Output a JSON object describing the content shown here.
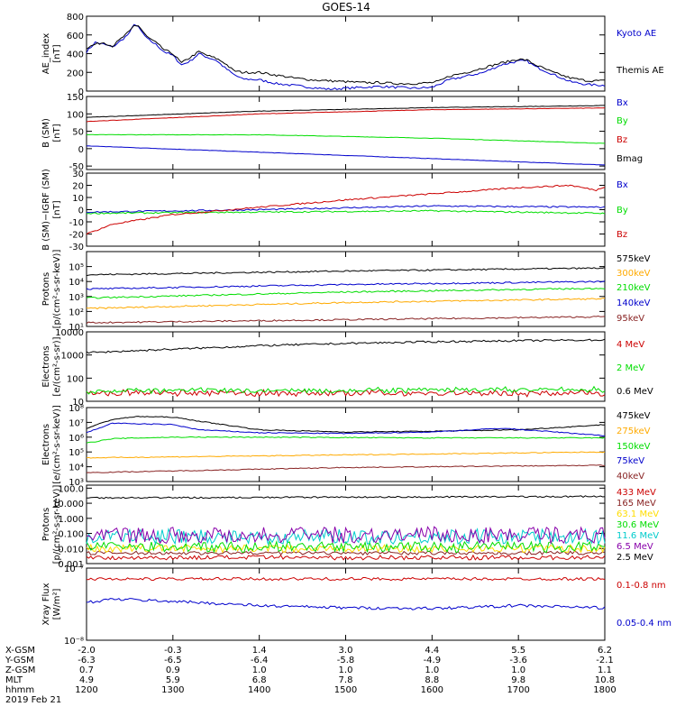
{
  "title": "GOES-14",
  "colors": {
    "black": "#000000",
    "blue": "#0000cc",
    "green": "#00dd00",
    "red": "#cc0000",
    "orange": "#ffaa00",
    "yellow": "#ffdd00",
    "cyan": "#00cccc",
    "purple": "#8800aa",
    "brown": "#882222"
  },
  "chart_data": [
    {
      "type": "line",
      "id": "ae",
      "ylabel": [
        "AE_index",
        "[nT]"
      ],
      "scale": "linear",
      "ylim": [
        0,
        800
      ],
      "ticks": [
        "0",
        "200",
        "400",
        "600",
        "800"
      ],
      "series": [
        {
          "name": "Kyoto AE",
          "color": "blue",
          "x": [
            1200,
            1210,
            1220,
            1230,
            1240,
            1250,
            1255,
            1260,
            1270,
            1280,
            1290,
            1300,
            1310,
            1320,
            1330,
            1340,
            1350,
            1360,
            1370,
            1380,
            1400,
            1420,
            1440,
            1460,
            1480,
            1500,
            1520,
            1540,
            1560,
            1580,
            1600,
            1610,
            1620,
            1640,
            1660,
            1680,
            1700,
            1710,
            1720,
            1740,
            1760,
            1780,
            1800
          ],
          "y": [
            420,
            520,
            500,
            470,
            540,
            620,
            720,
            680,
            560,
            500,
            420,
            380,
            280,
            320,
            400,
            360,
            330,
            250,
            180,
            130,
            120,
            80,
            60,
            40,
            20,
            30,
            40,
            50,
            40,
            30,
            40,
            80,
            120,
            160,
            200,
            280,
            320,
            320,
            260,
            180,
            100,
            70,
            60
          ]
        },
        {
          "name": "Themis AE",
          "color": "black",
          "x": [
            1200,
            1210,
            1220,
            1230,
            1240,
            1250,
            1255,
            1260,
            1270,
            1280,
            1290,
            1300,
            1310,
            1320,
            1330,
            1340,
            1350,
            1360,
            1370,
            1380,
            1400,
            1420,
            1440,
            1460,
            1480,
            1500,
            1520,
            1540,
            1560,
            1580,
            1600,
            1610,
            1620,
            1640,
            1660,
            1680,
            1700,
            1710,
            1720,
            1740,
            1760,
            1780,
            1800
          ],
          "y": [
            460,
            500,
            520,
            480,
            560,
            640,
            700,
            700,
            580,
            520,
            440,
            400,
            300,
            360,
            420,
            380,
            350,
            300,
            220,
            200,
            200,
            170,
            140,
            120,
            110,
            100,
            90,
            90,
            80,
            80,
            90,
            110,
            160,
            200,
            250,
            300,
            340,
            330,
            280,
            200,
            140,
            110,
            110
          ]
        }
      ],
      "legend": [
        "Kyoto AE",
        "Themis AE"
      ]
    },
    {
      "type": "line",
      "id": "bsm",
      "ylabel": [
        "B (SM)",
        "[nT]"
      ],
      "scale": "linear",
      "ylim": [
        -60,
        150
      ],
      "ticks": [
        "-50",
        "0",
        "50",
        "100",
        "150"
      ],
      "series": [
        {
          "name": "Bx",
          "color": "blue",
          "x": [
            1200,
            1800
          ],
          "y": [
            8,
            -47
          ]
        },
        {
          "name": "By",
          "color": "green",
          "x": [
            1200,
            1400,
            1600,
            1800
          ],
          "y": [
            40,
            40,
            30,
            15
          ]
        },
        {
          "name": "Bz",
          "color": "red",
          "x": [
            1200,
            1400,
            1600,
            1800
          ],
          "y": [
            78,
            100,
            112,
            117
          ]
        },
        {
          "name": "Bmag",
          "color": "black",
          "x": [
            1200,
            1400,
            1600,
            1800
          ],
          "y": [
            90,
            108,
            118,
            124
          ]
        }
      ],
      "legend": [
        "Bx",
        "By",
        "Bz",
        "Bmag"
      ]
    },
    {
      "type": "line",
      "id": "bigrf",
      "ylabel": [
        "B (SM)−IGRF (SM)",
        "[nT]"
      ],
      "scale": "linear",
      "ylim": [
        -30,
        30
      ],
      "ticks": [
        "-30",
        "-20",
        "-10",
        "0",
        "10",
        "20",
        "30"
      ],
      "series": [
        {
          "name": "Bx",
          "color": "blue",
          "x": [
            1200,
            1400,
            1600,
            1800
          ],
          "y": [
            -2,
            0,
            3,
            2
          ]
        },
        {
          "name": "By",
          "color": "green",
          "x": [
            1200,
            1400,
            1600,
            1800
          ],
          "y": [
            -3,
            -2,
            -1,
            -3
          ]
        },
        {
          "name": "Bz",
          "color": "red",
          "x": [
            1200,
            1230,
            1300,
            1400,
            1500,
            1600,
            1700,
            1760,
            1790,
            1800
          ],
          "y": [
            -20,
            -12,
            -4,
            2,
            8,
            13,
            18,
            20,
            16,
            19
          ]
        }
      ],
      "legend": [
        "Bx",
        "By",
        "Bz"
      ]
    },
    {
      "type": "line",
      "id": "protons1",
      "ylabel": [
        "Protons",
        "[p/(cm²-s-sr-keV)]"
      ],
      "scale": "log",
      "ylim": [
        1,
        6
      ],
      "ticks": [
        "10¹",
        "10²",
        "10³",
        "10⁴",
        "10⁵"
      ],
      "series": [
        {
          "name": "575keV",
          "color": "black",
          "x": [
            1200,
            1500,
            1800
          ],
          "y": [
            4.45,
            4.7,
            4.9
          ]
        },
        {
          "name": "300keV",
          "color": "orange",
          "x": [
            1200,
            1500,
            1800
          ],
          "y": [
            2.2,
            2.6,
            2.85
          ]
        },
        {
          "name": "210keV",
          "color": "green",
          "x": [
            1200,
            1500,
            1800
          ],
          "y": [
            2.9,
            3.3,
            3.55
          ]
        },
        {
          "name": "140keV",
          "color": "blue",
          "x": [
            1200,
            1500,
            1800
          ],
          "y": [
            3.5,
            3.8,
            4.0
          ]
        },
        {
          "name": "95keV",
          "color": "brown",
          "x": [
            1200,
            1500,
            1800
          ],
          "y": [
            1.25,
            1.45,
            1.65
          ]
        }
      ],
      "legend": [
        "575keV",
        "300keV",
        "210keV",
        "140keV",
        "95keV"
      ]
    },
    {
      "type": "line",
      "id": "electrons1",
      "ylabel": [
        "Electrons",
        "[e/(cm²-s-sr)]"
      ],
      "scale": "log",
      "ylim": [
        1,
        4
      ],
      "ticks": [
        "10",
        "100",
        "1000",
        "10000"
      ],
      "series": [
        {
          "name": "4 MeV",
          "color": "red",
          "x": [
            1200,
            1800
          ],
          "y": [
            1.35,
            1.35
          ]
        },
        {
          "name": "2 MeV",
          "color": "green",
          "x": [
            1200,
            1800
          ],
          "y": [
            1.45,
            1.5
          ]
        },
        {
          "name": "0.6 MeV",
          "color": "black",
          "x": [
            1200,
            1300,
            1400,
            1500,
            1600,
            1700,
            1800
          ],
          "y": [
            3.1,
            3.25,
            3.4,
            3.5,
            3.57,
            3.62,
            3.65
          ]
        }
      ],
      "legend": [
        "4 MeV",
        "2 MeV",
        "0.6 MeV"
      ]
    },
    {
      "type": "line",
      "id": "electrons2",
      "ylabel": [
        "Electrons",
        "[e/(cm²-s-sr-keV)]"
      ],
      "scale": "log",
      "ylim": [
        3,
        8
      ],
      "ticks": [
        "10³",
        "10⁴",
        "10⁵",
        "10⁶",
        "10⁷",
        "10⁸"
      ],
      "series": [
        {
          "name": "475keV",
          "color": "black",
          "x": [
            1200,
            1230,
            1260,
            1300,
            1340,
            1400,
            1500,
            1600,
            1700,
            1760,
            1800
          ],
          "y": [
            6.6,
            7.2,
            7.4,
            7.35,
            7.0,
            6.5,
            6.35,
            6.4,
            6.5,
            6.7,
            6.85
          ]
        },
        {
          "name": "275keV",
          "color": "orange",
          "x": [
            1200,
            1800
          ],
          "y": [
            4.6,
            5.0
          ]
        },
        {
          "name": "150keV",
          "color": "green",
          "x": [
            1200,
            1230,
            1300,
            1400,
            1600,
            1800
          ],
          "y": [
            5.6,
            5.9,
            6.0,
            6.0,
            5.95,
            5.95
          ]
        },
        {
          "name": "75keV",
          "color": "blue",
          "x": [
            1200,
            1230,
            1260,
            1300,
            1330,
            1400,
            1500,
            1600,
            1680,
            1720,
            1800
          ],
          "y": [
            6.3,
            6.95,
            6.9,
            6.85,
            6.5,
            6.3,
            6.25,
            6.35,
            6.6,
            6.45,
            6.1
          ]
        },
        {
          "name": "40keV",
          "color": "brown",
          "x": [
            1200,
            1500,
            1800
          ],
          "y": [
            3.6,
            3.95,
            4.1
          ]
        }
      ],
      "legend": [
        "475keV",
        "275keV",
        "150keV",
        "75keV",
        "40keV"
      ]
    },
    {
      "type": "line",
      "id": "protons2",
      "ylabel": [
        "Protons",
        "[p/(cm²-s-sr-keV)]"
      ],
      "scale": "log",
      "ylim": [
        -3,
        2.2
      ],
      "ticks": [
        "0.001",
        "0.010",
        "0.100",
        "1.000",
        "10.000",
        "100.0"
      ],
      "series": [
        {
          "name": "433 MeV",
          "color": "red",
          "x": [
            1200,
            1800
          ],
          "y": [
            -2.6,
            -2.6
          ]
        },
        {
          "name": "165 MeV",
          "color": "brown",
          "x": [
            1200,
            1800
          ],
          "y": [
            -2.3,
            -2.3
          ]
        },
        {
          "name": "63.1 MeV",
          "color": "yellow",
          "x": [
            1200,
            1800
          ],
          "y": [
            -2.0,
            -2.0
          ]
        },
        {
          "name": "30.6 MeV",
          "color": "green",
          "x": [
            1200,
            1800
          ],
          "y": [
            -1.9,
            -1.9
          ]
        },
        {
          "name": "11.6 MeV",
          "color": "cyan",
          "x": [
            1200,
            1800
          ],
          "y": [
            -1.2,
            -1.2
          ]
        },
        {
          "name": "6.5 MeV",
          "color": "purple",
          "x": [
            1200,
            1800
          ],
          "y": [
            -1.1,
            -1.1
          ]
        },
        {
          "name": "2.5 MeV",
          "color": "black",
          "x": [
            1200,
            1800
          ],
          "y": [
            1.35,
            1.45
          ]
        }
      ],
      "legend": [
        "433 MeV",
        "165 MeV",
        "63.1 MeV",
        "30.6 MeV",
        "11.6 MeV",
        "6.5 MeV",
        "2.5 MeV"
      ]
    },
    {
      "type": "line",
      "id": "xray",
      "ylabel": [
        "Xray Flux",
        "[W/m²]"
      ],
      "scale": "log",
      "ylim": [
        -8,
        -7
      ],
      "ticks": [
        "10⁻⁸",
        "10⁻⁷"
      ],
      "series": [
        {
          "name": "0.1-0.8 nm",
          "color": "red",
          "x": [
            1200,
            1800
          ],
          "y": [
            -7.15,
            -7.15
          ]
        },
        {
          "name": "0.05-0.4 nm",
          "color": "blue",
          "x": [
            1200,
            1230,
            1300,
            1400,
            1500,
            1600,
            1700,
            1800
          ],
          "y": [
            -7.48,
            -7.43,
            -7.46,
            -7.52,
            -7.55,
            -7.56,
            -7.52,
            -7.55
          ]
        }
      ],
      "legend": [
        "0.1-0.8 nm",
        "0.05-0.4 nm"
      ]
    }
  ],
  "x_axis": {
    "rows": [
      {
        "label": "X-GSM",
        "values": [
          "-2.0",
          "-0.3",
          "1.4",
          "3.0",
          "4.4",
          "5.5",
          "6.2"
        ]
      },
      {
        "label": "Y-GSM",
        "values": [
          "-6.3",
          "-6.5",
          "-6.4",
          "-5.8",
          "-4.9",
          "-3.6",
          "-2.1"
        ]
      },
      {
        "label": "Z-GSM",
        "values": [
          "0.7",
          "0.9",
          "1.0",
          "1.0",
          "1.0",
          "1.0",
          "1.1"
        ]
      },
      {
        "label": "MLT",
        "values": [
          "4.9",
          "5.9",
          "6.8",
          "7.8",
          "8.8",
          "9.8",
          "10.8"
        ]
      },
      {
        "label": "hhmm",
        "values": [
          "1200",
          "1300",
          "1400",
          "1500",
          "1600",
          "1700",
          "1800"
        ]
      }
    ],
    "date": "2019 Feb 21"
  }
}
